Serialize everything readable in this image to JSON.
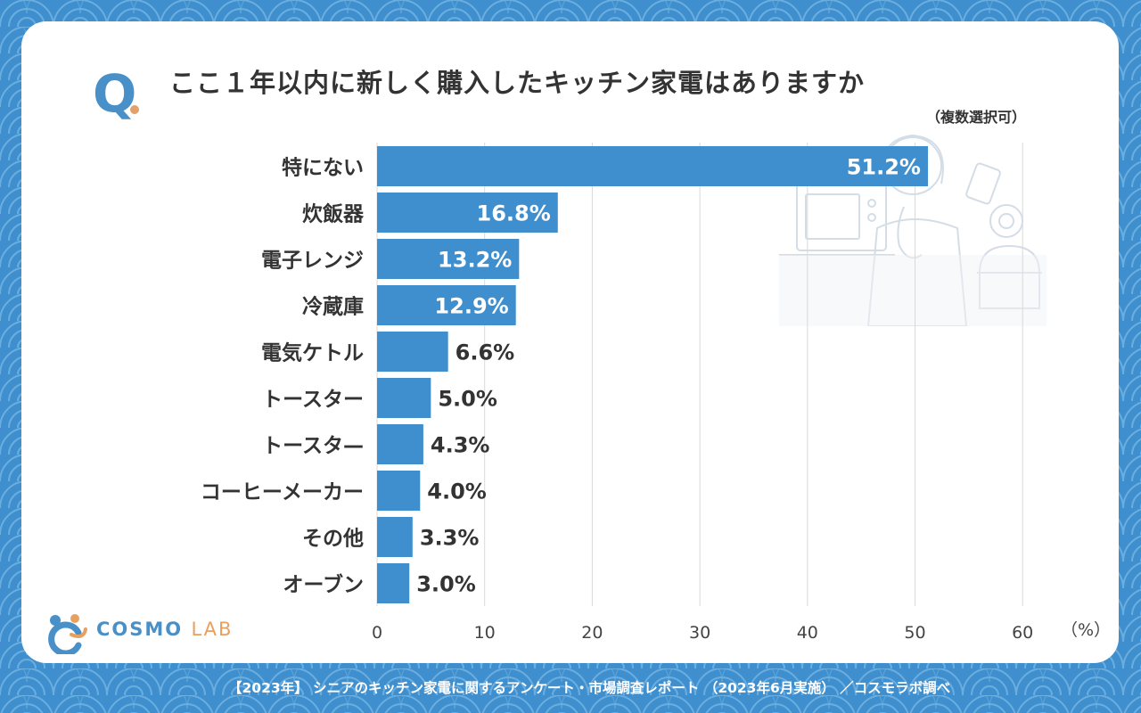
{
  "header": {
    "q_mark": "Q",
    "title": "ここ１年以内に新しく購入したキッチン家電はありますか",
    "subtitle": "（複数選択可）"
  },
  "chart_data": {
    "type": "bar",
    "orientation": "horizontal",
    "categories": [
      "特にない",
      "炊飯器",
      "電子レンジ",
      "冷蔵庫",
      "電気ケトル",
      "トースター",
      "トースタ—",
      "コーヒーメーカー",
      "その他",
      "オーブン"
    ],
    "values": [
      51.2,
      16.8,
      13.2,
      12.9,
      6.6,
      5.0,
      4.3,
      4.0,
      3.3,
      3.0
    ],
    "value_labels": [
      "51.2%",
      "16.8%",
      "13.2%",
      "12.9%",
      "6.6%",
      "5.0%",
      "4.3%",
      "4.0%",
      "3.3%",
      "3.0%"
    ],
    "xlim": [
      0,
      60
    ],
    "xticks": [
      0,
      10,
      20,
      30,
      40,
      50,
      60
    ],
    "x_unit": "（%）",
    "grid": true,
    "bar_color": "#3f8fcf"
  },
  "logo": {
    "name_main": "COSMO",
    "name_sub": "LAB"
  },
  "footer": {
    "source": "【2023年】 シニアのキッチン家電に関するアンケート・市場調査レポート （2023年6月実施） ／コスモラボ調べ"
  },
  "colors": {
    "background": "#3f8fcf",
    "accent": "#4a90c8",
    "orange": "#e8a05f"
  }
}
